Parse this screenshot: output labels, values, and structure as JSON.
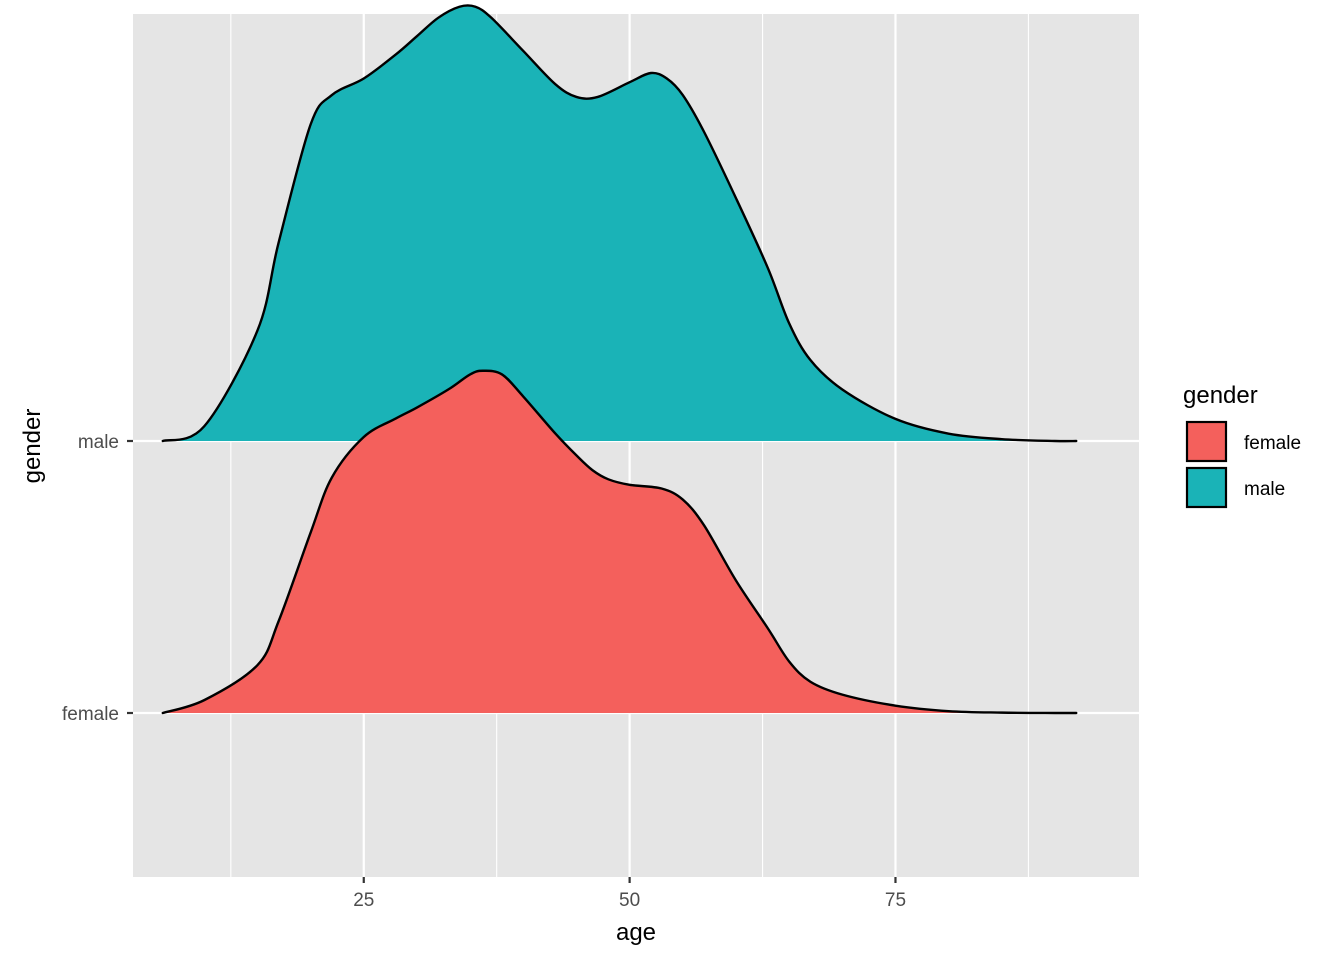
{
  "chart_data": {
    "type": "area",
    "subtype": "ridgeline-density",
    "xlabel": "age",
    "ylabel": "gender",
    "xlim": [
      3.3,
      97.9
    ],
    "x_ticks": [
      25,
      50,
      75
    ],
    "categories": [
      "female",
      "male"
    ],
    "grid": true,
    "legend": {
      "title": "gender",
      "position": "right",
      "entries": [
        "female",
        "male"
      ]
    },
    "series": [
      {
        "name": "female",
        "color": "#F4605C",
        "x": [
          6.1,
          10,
          15,
          17,
          20,
          22,
          25,
          28,
          30,
          33,
          35,
          36.2,
          38,
          40,
          43,
          45,
          46.5,
          48,
          50,
          53,
          55,
          57,
          60,
          63,
          65,
          67,
          70,
          75,
          80,
          85,
          90,
          92
        ],
        "density": [
          0.0,
          0.035,
          0.13,
          0.25,
          0.49,
          0.64,
          0.75,
          0.8,
          0.83,
          0.88,
          0.92,
          0.93,
          0.92,
          0.86,
          0.76,
          0.7,
          0.66,
          0.635,
          0.62,
          0.61,
          0.58,
          0.51,
          0.36,
          0.23,
          0.14,
          0.085,
          0.05,
          0.02,
          0.005,
          0.001,
          0.0,
          0.0
        ]
      },
      {
        "name": "male",
        "color": "#1AB3B7",
        "x": [
          6.1,
          10,
          15,
          17,
          20,
          22,
          25,
          28,
          30,
          32,
          34,
          35.5,
          37,
          40,
          43,
          45,
          47,
          50,
          52,
          53.5,
          55,
          57,
          60,
          63,
          65,
          67,
          70,
          75,
          80,
          85,
          90,
          92
        ],
        "density": [
          0.0,
          0.04,
          0.3,
          0.54,
          0.86,
          0.94,
          0.985,
          1.05,
          1.1,
          1.15,
          1.18,
          1.18,
          1.15,
          1.06,
          0.97,
          0.935,
          0.935,
          0.975,
          1.0,
          0.985,
          0.94,
          0.84,
          0.66,
          0.47,
          0.32,
          0.22,
          0.14,
          0.06,
          0.02,
          0.005,
          0.0,
          0.0
        ]
      }
    ]
  }
}
